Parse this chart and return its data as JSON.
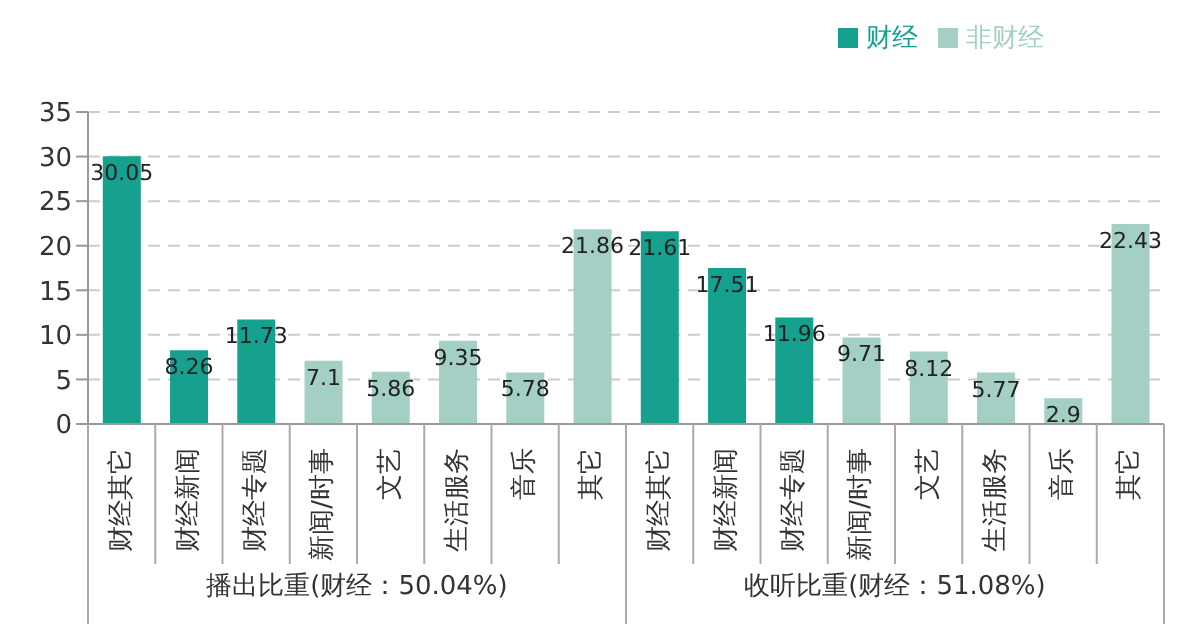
{
  "chart_data": {
    "type": "bar",
    "stacked": true,
    "categories": [
      "财经其它",
      "财经新闻",
      "财经专题",
      "新闻/时事",
      "文艺",
      "生活服务",
      "音乐",
      "其它",
      "财经其它",
      "财经新闻",
      "财经专题",
      "新闻/时事",
      "文艺",
      "生活服务",
      "音乐",
      "其它"
    ],
    "series": [
      {
        "name": "非财经",
        "color": "#a3cfc4",
        "values": [
          null,
          null,
          null,
          7.1,
          5.86,
          9.35,
          5.78,
          21.86,
          null,
          null,
          null,
          9.71,
          8.12,
          5.77,
          2.9,
          22.43
        ]
      },
      {
        "name": "财经",
        "color": "#16a08e",
        "values": [
          30.05,
          8.26,
          11.73,
          null,
          null,
          null,
          null,
          null,
          21.61,
          17.51,
          11.96,
          null,
          null,
          null,
          null,
          null
        ]
      }
    ],
    "annotations": [
      "播出比重(财经：50.04%)",
      "收听比重(财经：51.08%)"
    ],
    "ylim": [
      0,
      35
    ],
    "yticks": [
      0,
      5,
      10,
      15,
      20,
      25,
      30,
      35
    ],
    "grid": "y",
    "legend": "top right",
    "data_labels": true
  }
}
